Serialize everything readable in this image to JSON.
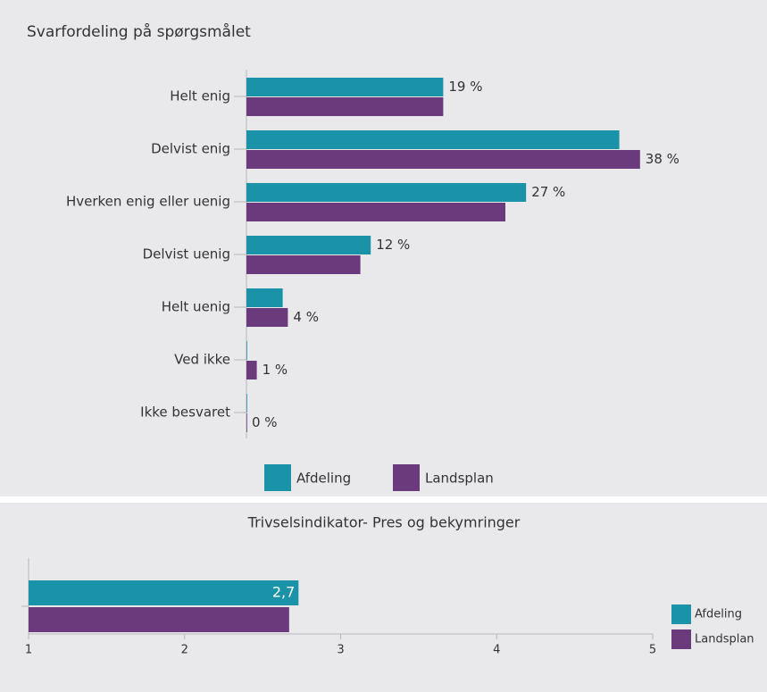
{
  "chart_data": [
    {
      "type": "bar",
      "orientation": "horizontal",
      "title": "Svarfordeling på spørgsmålet",
      "categories": [
        "Helt enig",
        "Delvist enig",
        "Hverken enig eller uenig",
        "Delvist uenig",
        "Helt uenig",
        "Ved ikke",
        "Ikke besvaret"
      ],
      "xlim": [
        0,
        40
      ],
      "series": [
        {
          "name": "Afdeling",
          "color": "#1a93a8",
          "values": [
            19,
            36,
            27,
            12,
            3.5,
            0,
            0
          ],
          "value_labels": [
            "19 %",
            null,
            "27 %",
            "12 %",
            null,
            null,
            null
          ]
        },
        {
          "name": "Landsplan",
          "color": "#6a3a7c",
          "values": [
            19,
            38,
            25,
            11,
            4,
            1,
            0
          ],
          "value_labels": [
            null,
            "38 %",
            null,
            null,
            "4 %",
            "1 %",
            "0 %"
          ]
        }
      ],
      "legend": "bottom"
    },
    {
      "type": "bar",
      "orientation": "horizontal",
      "title": "Trivselsindikator- Pres og bekymringer",
      "xlim": [
        1,
        5
      ],
      "xticks": [
        1,
        2,
        3,
        4,
        5
      ],
      "series": [
        {
          "name": "Afdeling",
          "color": "#1a93a8",
          "values": [
            2.73
          ],
          "value_labels": [
            "2,7"
          ]
        },
        {
          "name": "Landsplan",
          "color": "#6a3a7c",
          "values": [
            2.67
          ]
        }
      ],
      "legend": "right"
    }
  ]
}
